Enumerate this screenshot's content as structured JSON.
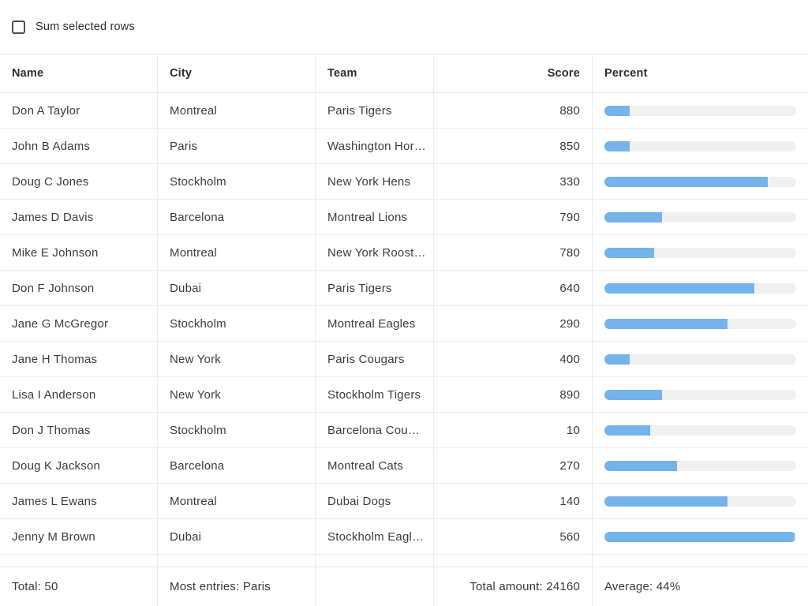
{
  "controls": {
    "sum_selected_label": "Sum selected rows",
    "sum_selected_checked": false
  },
  "colors": {
    "bar_fill": "#74b3ec",
    "bar_track": "#f0f0f1"
  },
  "table": {
    "columns": [
      "Name",
      "City",
      "Team",
      "Score",
      "Percent"
    ],
    "rows": [
      {
        "name": "Don A Taylor",
        "city": "Montreal",
        "team": "Paris Tigers",
        "score": "880",
        "percent": 13
      },
      {
        "name": "John B Adams",
        "city": "Paris",
        "team": "Washington Hor…",
        "score": "850",
        "percent": 13
      },
      {
        "name": "Doug C Jones",
        "city": "Stockholm",
        "team": "New York Hens",
        "score": "330",
        "percent": 85
      },
      {
        "name": "James D Davis",
        "city": "Barcelona",
        "team": "Montreal Lions",
        "score": "790",
        "percent": 30
      },
      {
        "name": "Mike E Johnson",
        "city": "Montreal",
        "team": "New York Roost…",
        "score": "780",
        "percent": 26
      },
      {
        "name": "Don F Johnson",
        "city": "Dubai",
        "team": "Paris Tigers",
        "score": "640",
        "percent": 78
      },
      {
        "name": "Jane G McGregor",
        "city": "Stockholm",
        "team": "Montreal Eagles",
        "score": "290",
        "percent": 64
      },
      {
        "name": "Jane H Thomas",
        "city": "New York",
        "team": "Paris Cougars",
        "score": "400",
        "percent": 13
      },
      {
        "name": "Lisa I Anderson",
        "city": "New York",
        "team": "Stockholm Tigers",
        "score": "890",
        "percent": 30
      },
      {
        "name": "Don J Thomas",
        "city": "Stockholm",
        "team": "Barcelona Cou…",
        "score": "10",
        "percent": 24
      },
      {
        "name": "Doug K Jackson",
        "city": "Barcelona",
        "team": "Montreal Cats",
        "score": "270",
        "percent": 38
      },
      {
        "name": "James L Ewans",
        "city": "Montreal",
        "team": "Dubai Dogs",
        "score": "140",
        "percent": 64
      },
      {
        "name": "Jenny M Brown",
        "city": "Dubai",
        "team": "Stockholm Eagl…",
        "score": "560",
        "percent": 99
      }
    ],
    "footer": {
      "total": "Total: 50",
      "most_entries": "Most entries: Paris",
      "total_amount": "Total amount: 24160",
      "average": "Average: 44%"
    }
  }
}
